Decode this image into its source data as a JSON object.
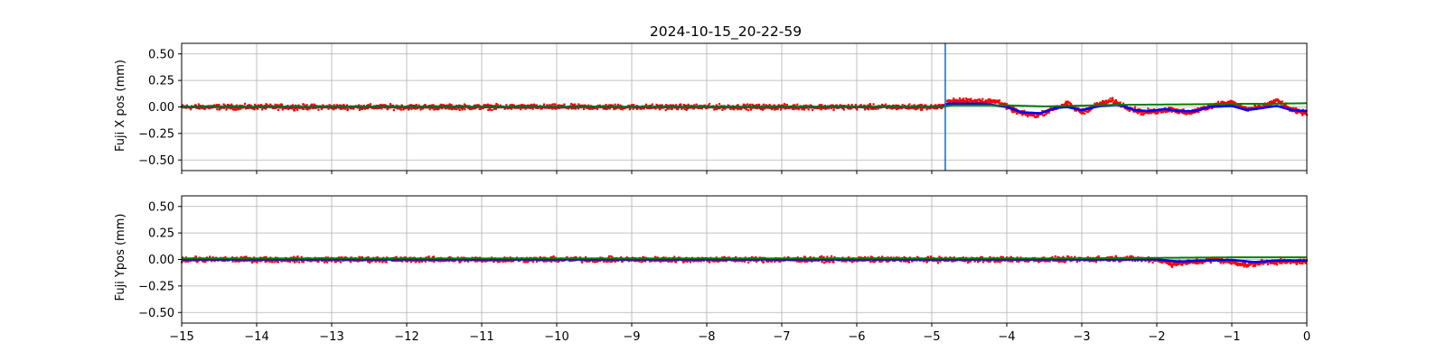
{
  "title": "2024-10-15_20-22-59",
  "colors": {
    "raw": "#ff0000",
    "smooth": "#0000ff",
    "ref": "#008000",
    "marker": "#1f77b4",
    "grid": "#b0b0b0"
  },
  "chart_data": [
    {
      "type": "scatter",
      "ylabel": "Fuji X pos (mm)",
      "xlim": [
        -15,
        0
      ],
      "ylim": [
        -0.6,
        0.6
      ],
      "x_ticks": [
        -15,
        -14,
        -13,
        -12,
        -11,
        -10,
        -9,
        -8,
        -7,
        -6,
        -5,
        -4,
        -3,
        -2,
        -1,
        0
      ],
      "y_ticks": [
        0.5,
        0.25,
        0.0,
        -0.25,
        -0.5
      ],
      "y_tick_labels": [
        "0.50",
        "0.25",
        "0.00",
        "−0.25",
        "−0.50"
      ],
      "grid": true,
      "show_x_tick_labels": false,
      "vline_x": -4.82,
      "series": [
        {
          "role": "raw",
          "color": "#ff0000",
          "spread": 0.035,
          "points": [
            [
              -15,
              0
            ],
            [
              -14,
              0
            ],
            [
              -13,
              0
            ],
            [
              -12,
              0
            ],
            [
              -11,
              0
            ],
            [
              -10,
              0
            ],
            [
              -9,
              0
            ],
            [
              -8,
              0
            ],
            [
              -7,
              0
            ],
            [
              -6,
              0
            ],
            [
              -5,
              0
            ],
            [
              -4.85,
              0
            ],
            [
              -4.8,
              0.05
            ],
            [
              -4.5,
              0.06
            ],
            [
              -4.1,
              0.05
            ],
            [
              -4.0,
              0.0
            ],
            [
              -3.8,
              -0.06
            ],
            [
              -3.6,
              -0.08
            ],
            [
              -3.4,
              -0.02
            ],
            [
              -3.2,
              0.03
            ],
            [
              -3.0,
              -0.05
            ],
            [
              -2.8,
              0.02
            ],
            [
              -2.6,
              0.06
            ],
            [
              -2.4,
              0.0
            ],
            [
              -2.2,
              -0.05
            ],
            [
              -2.0,
              -0.04
            ],
            [
              -1.8,
              -0.02
            ],
            [
              -1.6,
              -0.06
            ],
            [
              -1.4,
              -0.02
            ],
            [
              -1.2,
              0.03
            ],
            [
              -1.0,
              0.04
            ],
            [
              -0.8,
              -0.02
            ],
            [
              -0.6,
              0.0
            ],
            [
              -0.4,
              0.06
            ],
            [
              -0.2,
              -0.03
            ],
            [
              0,
              -0.06
            ]
          ]
        },
        {
          "role": "smooth",
          "color": "#0000ff",
          "points": [
            [
              -15,
              0
            ],
            [
              -5,
              0
            ],
            [
              -4.85,
              0
            ],
            [
              -4.8,
              0.03
            ],
            [
              -4.3,
              0.03
            ],
            [
              -4.0,
              0.0
            ],
            [
              -3.8,
              -0.05
            ],
            [
              -3.55,
              -0.06
            ],
            [
              -3.35,
              -0.01
            ],
            [
              -3.2,
              0.0
            ],
            [
              -3.0,
              -0.03
            ],
            [
              -2.75,
              0.01
            ],
            [
              -2.5,
              0.02
            ],
            [
              -2.3,
              -0.03
            ],
            [
              -2.1,
              -0.04
            ],
            [
              -1.9,
              -0.02
            ],
            [
              -1.7,
              -0.04
            ],
            [
              -1.5,
              -0.04
            ],
            [
              -1.3,
              0.0
            ],
            [
              -1.0,
              0.01
            ],
            [
              -0.8,
              -0.03
            ],
            [
              -0.6,
              -0.01
            ],
            [
              -0.4,
              0.01
            ],
            [
              -0.2,
              -0.03
            ],
            [
              0,
              -0.04
            ]
          ]
        },
        {
          "role": "ref",
          "color": "#008000",
          "points": [
            [
              -15,
              0
            ],
            [
              -4.85,
              0
            ],
            [
              -4.75,
              0.015
            ],
            [
              -4.0,
              0.015
            ],
            [
              -3.5,
              0.005
            ],
            [
              -2.5,
              0.02
            ],
            [
              -1.5,
              0.025
            ],
            [
              -1.0,
              0.03
            ],
            [
              -0.5,
              0.03
            ],
            [
              0,
              0.035
            ]
          ]
        }
      ]
    },
    {
      "type": "scatter",
      "ylabel": "Fuji Ypos (mm)",
      "xlim": [
        -15,
        0
      ],
      "ylim": [
        -0.6,
        0.6
      ],
      "x_ticks": [
        -15,
        -14,
        -13,
        -12,
        -11,
        -10,
        -9,
        -8,
        -7,
        -6,
        -5,
        -4,
        -3,
        -2,
        -1,
        0
      ],
      "x_tick_labels": [
        "−15",
        "−14",
        "−13",
        "−12",
        "−11",
        "−10",
        "−9",
        "−8",
        "−7",
        "−6",
        "−5",
        "−4",
        "−3",
        "−2",
        "−1",
        "0"
      ],
      "y_ticks": [
        0.5,
        0.25,
        0.0,
        -0.25,
        -0.5
      ],
      "y_tick_labels": [
        "0.50",
        "0.25",
        "0.00",
        "−0.25",
        "−0.50"
      ],
      "grid": true,
      "show_x_tick_labels": true,
      "series": [
        {
          "role": "raw",
          "color": "#ff0000",
          "spread": 0.035,
          "points": [
            [
              -15,
              0
            ],
            [
              -3,
              0
            ],
            [
              -2.5,
              0.01
            ],
            [
              -2.0,
              0.0
            ],
            [
              -1.8,
              -0.04
            ],
            [
              -1.6,
              -0.03
            ],
            [
              -1.2,
              0.0
            ],
            [
              -0.8,
              -0.05
            ],
            [
              -0.5,
              -0.02
            ],
            [
              0,
              -0.02
            ]
          ]
        },
        {
          "role": "smooth",
          "color": "#0000ff",
          "points": [
            [
              -15,
              0
            ],
            [
              -2.0,
              0
            ],
            [
              -1.7,
              -0.02
            ],
            [
              -1.4,
              -0.01
            ],
            [
              -1.0,
              -0.005
            ],
            [
              -0.7,
              -0.025
            ],
            [
              -0.4,
              -0.01
            ],
            [
              0,
              -0.01
            ]
          ]
        },
        {
          "role": "ref",
          "color": "#008000",
          "points": [
            [
              -15,
              0.01
            ],
            [
              -3,
              0.01
            ],
            [
              -2,
              0.015
            ],
            [
              -1,
              0.02
            ],
            [
              0,
              0.02
            ]
          ]
        }
      ]
    }
  ]
}
